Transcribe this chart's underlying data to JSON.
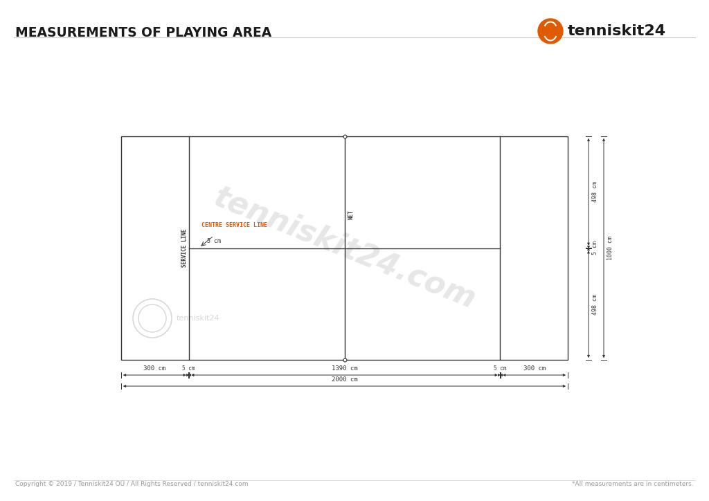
{
  "title": "MEASUREMENTS OF PLAYING AREA",
  "bg_color": "#ffffff",
  "title_color": "#1a1a1a",
  "line_color": "#333333",
  "label_color_orange": "#e05a00",
  "watermark_text": "tenniskit24.com",
  "logo_text": "tenniskit24",
  "copyright_text": "Copyright © 2019 / Tenniskit24 OÜ / All Rights Reserved / tenniskit24.com",
  "note_text": "*All measurements are in centimeters.",
  "service_line_label": "SERVICE LINE",
  "net_label": "NET",
  "centre_service_line_label": "CENTRE SERVICE LINE",
  "centre_service_line_width_label": "5 cm",
  "bottom_segments": [
    [
      0,
      300,
      "300 cm"
    ],
    [
      300,
      305,
      "5 cm"
    ],
    [
      305,
      1695,
      "1390 cm"
    ],
    [
      1695,
      1700,
      "5 cm"
    ],
    [
      1700,
      2000,
      "300 cm"
    ]
  ],
  "bottom_total": "2000 cm",
  "right_top": "498 cm",
  "right_mid": "5 cm",
  "right_bot": "498 cm",
  "right_total": "1000 cm"
}
